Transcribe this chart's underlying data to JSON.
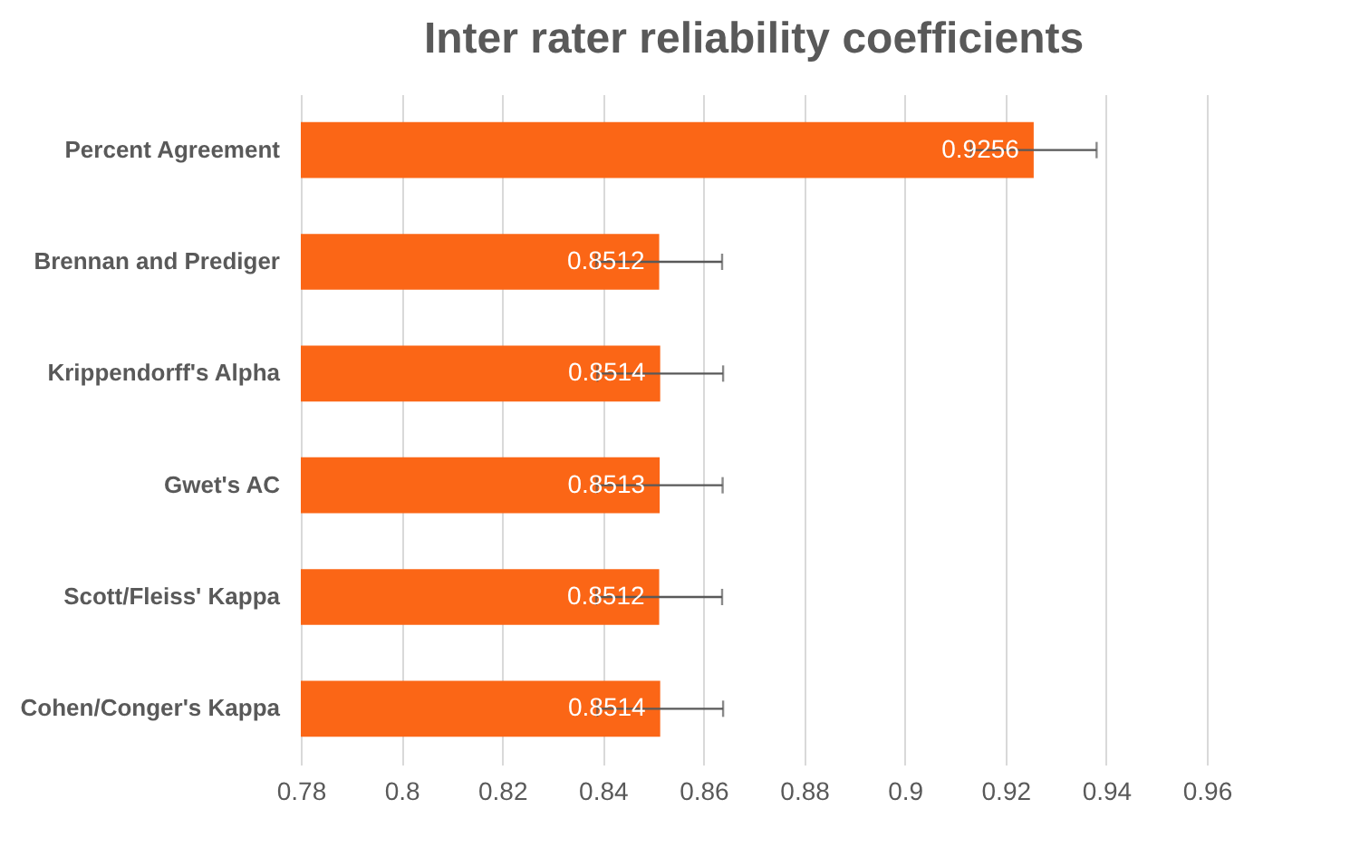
{
  "chart_data": {
    "type": "bar",
    "orientation": "horizontal",
    "title": "Inter rater reliability coefficients",
    "categories": [
      "Percent Agreement",
      "Brennan and Prediger",
      "Krippendorff's Alpha",
      "Gwet's AC",
      "Scott/Fleiss' Kappa",
      "Cohen/Conger's Kappa"
    ],
    "values": [
      0.9256,
      0.8512,
      0.8514,
      0.8513,
      0.8512,
      0.8514
    ],
    "errors": [
      0.0125,
      0.0125,
      0.0125,
      0.0125,
      0.0125,
      0.0125
    ],
    "color": "#fb6616",
    "data_labels": true,
    "grid": "x",
    "xlim": [
      0.78,
      0.96
    ],
    "xticks": [
      0.78,
      0.8,
      0.82,
      0.84,
      0.86,
      0.88,
      0.9,
      0.92,
      0.94,
      0.96
    ]
  }
}
